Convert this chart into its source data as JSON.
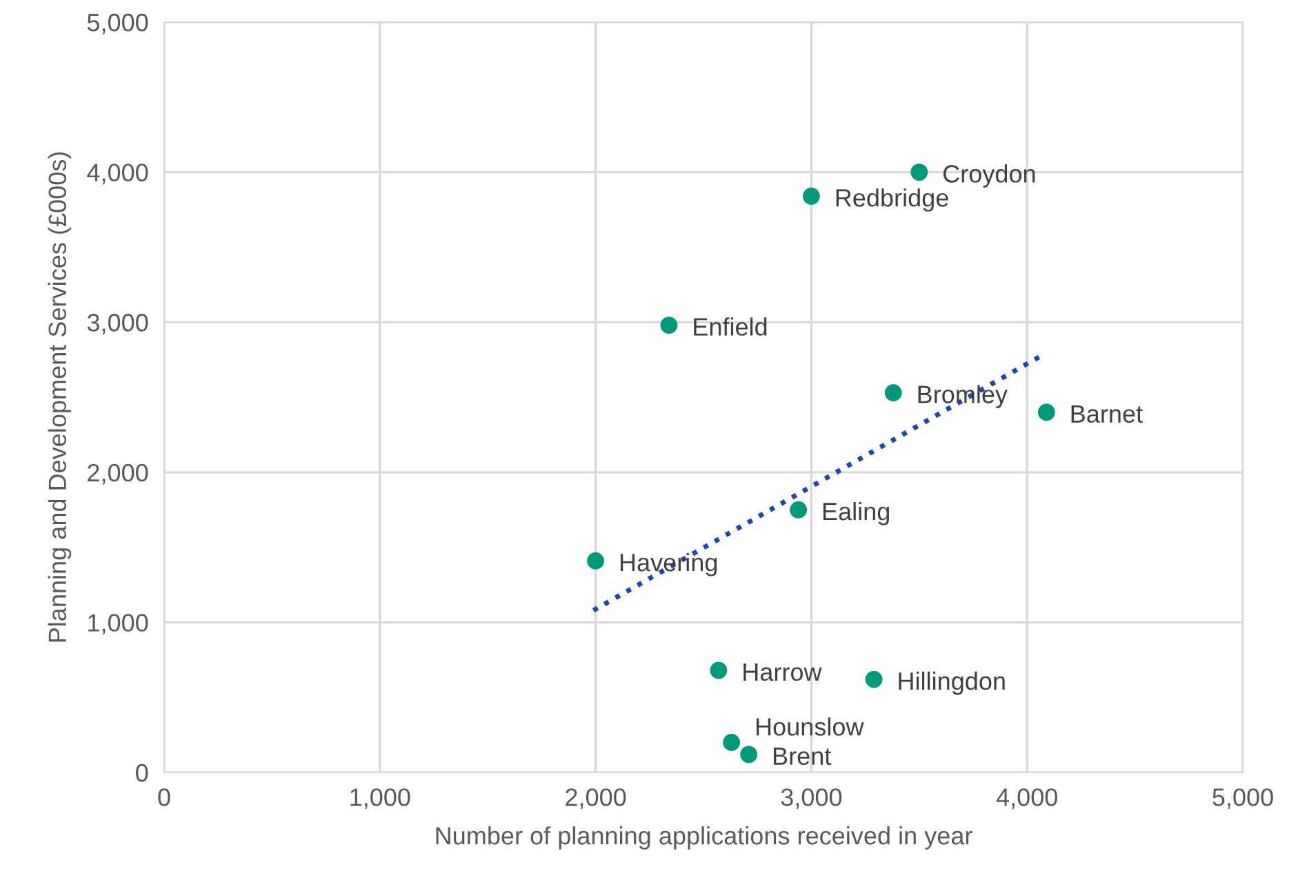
{
  "chart_data": {
    "type": "scatter",
    "xlabel": "Number of planning applications received in year",
    "ylabel": "Planning and Development Services (£000s)",
    "xlim": [
      0,
      5000
    ],
    "ylim": [
      0,
      5000
    ],
    "xticks": [
      {
        "value": 0,
        "label": "0"
      },
      {
        "value": 1000,
        "label": "1,000"
      },
      {
        "value": 2000,
        "label": "2,000"
      },
      {
        "value": 3000,
        "label": "3,000"
      },
      {
        "value": 4000,
        "label": "4,000"
      },
      {
        "value": 5000,
        "label": "5,000"
      }
    ],
    "yticks": [
      {
        "value": 0,
        "label": "0"
      },
      {
        "value": 1000,
        "label": "1,000"
      },
      {
        "value": 2000,
        "label": "2,000"
      },
      {
        "value": 3000,
        "label": "3,000"
      },
      {
        "value": 4000,
        "label": "4,000"
      },
      {
        "value": 5000,
        "label": "5,000"
      }
    ],
    "grid": true,
    "legend": false,
    "series": [
      {
        "color": "#00997a",
        "marker": "circle",
        "x": [
          3500,
          3000,
          2340,
          3380,
          4090,
          2940,
          2000,
          2570,
          3290,
          2630,
          2710
        ],
        "values": [
          4000,
          3840,
          2980,
          2530,
          2400,
          1750,
          1410,
          680,
          620,
          200,
          120
        ]
      },
      {
        "type": "line",
        "color": "#1f47a6",
        "line_style": "dotted",
        "marker": "none",
        "x": [
          1990,
          4070
        ],
        "values": [
          1080,
          2780
        ]
      }
    ],
    "annotations": [
      {
        "text": "Croydon",
        "x": 3500,
        "y": 4000
      },
      {
        "text": "Redbridge",
        "x": 3000,
        "y": 3840
      },
      {
        "text": "Enfield",
        "x": 2340,
        "y": 2980
      },
      {
        "text": "Bromley",
        "x": 3380,
        "y": 2530
      },
      {
        "text": "Barnet",
        "x": 4090,
        "y": 2400
      },
      {
        "text": "Ealing",
        "x": 2940,
        "y": 1750
      },
      {
        "text": "Havering",
        "x": 2000,
        "y": 1410
      },
      {
        "text": "Harrow",
        "x": 2570,
        "y": 680
      },
      {
        "text": "Hillingdon",
        "x": 3290,
        "y": 620
      },
      {
        "text": "Hounslow",
        "x": 2630,
        "y": 200
      },
      {
        "text": "Brent",
        "x": 2710,
        "y": 120
      }
    ]
  }
}
